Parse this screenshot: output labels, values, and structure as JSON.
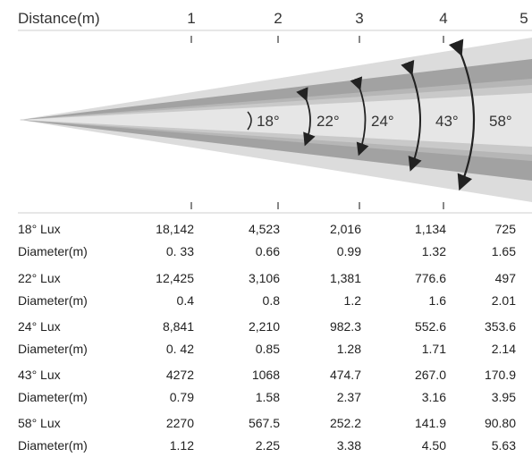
{
  "header": {
    "distance_label": "Distance(m)",
    "distances": [
      "1",
      "2",
      "3",
      "4",
      "5"
    ]
  },
  "beams": [
    {
      "label": "18°",
      "color": "#e3e3e3"
    },
    {
      "label": "22°",
      "color": "#c6c6c6"
    },
    {
      "label": "24°",
      "color": "#b1b1b1"
    },
    {
      "label": "43°",
      "color": "#9a9a9a"
    },
    {
      "label": "58°",
      "color": "#dcdcdc"
    }
  ],
  "table": {
    "rows": [
      {
        "label": "18° Lux",
        "values": [
          "18,142",
          "4,523",
          "2,016",
          "1,134",
          "725"
        ]
      },
      {
        "label": "Diameter(m)",
        "values": [
          "0. 33",
          "0.66",
          "0.99",
          "1.32",
          "1.65"
        ]
      },
      {
        "label": "22° Lux",
        "values": [
          "12,425",
          "3,106",
          "1,381",
          "776.6",
          "497"
        ]
      },
      {
        "label": "Diameter(m)",
        "values": [
          "0.4",
          "0.8",
          "1.2",
          "1.6",
          "2.01"
        ]
      },
      {
        "label": "24° Lux",
        "values": [
          "8,841",
          "2,210",
          "982.3",
          "552.6",
          "353.6"
        ]
      },
      {
        "label": "Diameter(m)",
        "values": [
          "0. 42",
          "0.85",
          "1.28",
          "1.71",
          "2.14"
        ]
      },
      {
        "label": "43° Lux",
        "values": [
          "4272",
          "1068",
          "474.7",
          "267.0",
          "170.9"
        ]
      },
      {
        "label": "Diameter(m)",
        "values": [
          "0.79",
          "1.58",
          "2.37",
          "3.16",
          "3.95"
        ]
      },
      {
        "label": "58° Lux",
        "values": [
          "2270",
          "567.5",
          "252.2",
          "141.9",
          "90.80"
        ]
      },
      {
        "label": "Diameter(m)",
        "values": [
          "1.12",
          "2.25",
          "3.38",
          "4.50",
          "5.63"
        ]
      }
    ]
  }
}
